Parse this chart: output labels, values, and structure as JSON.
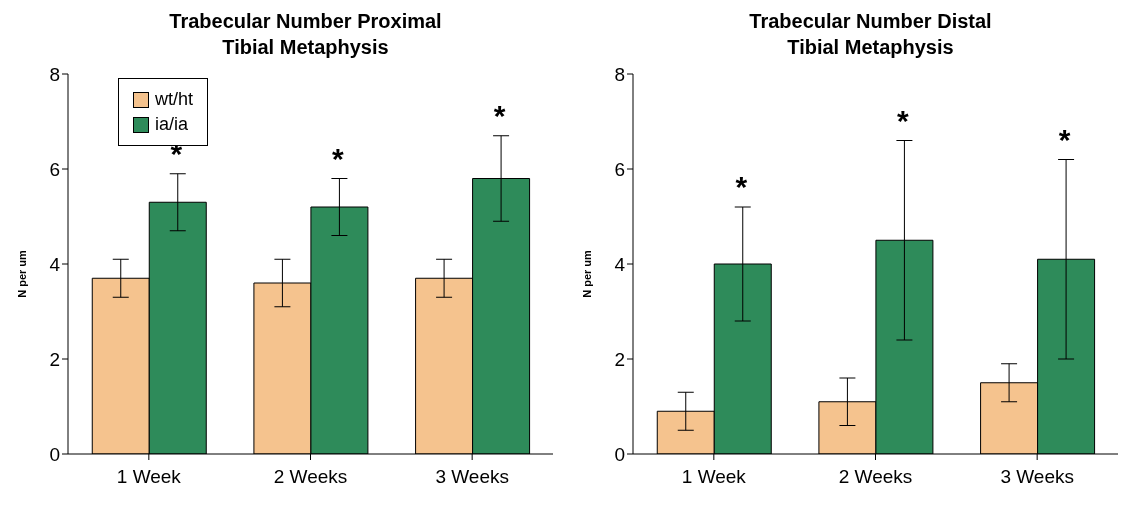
{
  "chart_data": [
    {
      "type": "bar",
      "title": "Trabecular Number Proximal\nTibial Metaphysis",
      "ylabel": "N per um",
      "categories": [
        "1 Week",
        "2 Weeks",
        "3 Weeks"
      ],
      "series": [
        {
          "name": "wt/ht",
          "color": "#f5c38e",
          "values": [
            3.7,
            3.6,
            3.7
          ],
          "errors": [
            0.4,
            0.5,
            0.4
          ]
        },
        {
          "name": "ia/ia",
          "color": "#2e8b5a",
          "values": [
            5.3,
            5.2,
            5.8
          ],
          "errors": [
            0.6,
            0.6,
            0.9
          ]
        }
      ],
      "ylim": [
        0,
        8
      ],
      "yticks": [
        0,
        2,
        4,
        6,
        8
      ],
      "grid": false,
      "legend": "top left",
      "annotations": [
        "*",
        "*",
        "*"
      ]
    },
    {
      "type": "bar",
      "title": "Trabecular Number Distal\nTibial Metaphysis",
      "ylabel": "N per um",
      "categories": [
        "1 Week",
        "2 Weeks",
        "3 Weeks"
      ],
      "series": [
        {
          "color": "#f5c38e",
          "values": [
            0.9,
            1.1,
            1.5
          ],
          "errors": [
            0.4,
            0.5,
            0.4
          ]
        },
        {
          "color": "#2e8b5a",
          "values": [
            4.0,
            4.5,
            4.1
          ],
          "errors": [
            1.2,
            2.1,
            2.1
          ]
        }
      ],
      "ylim": [
        0,
        8
      ],
      "yticks": [
        0,
        2,
        4,
        6,
        8
      ],
      "grid": false,
      "legend": false,
      "annotations": [
        "*",
        "*",
        "*"
      ]
    }
  ]
}
